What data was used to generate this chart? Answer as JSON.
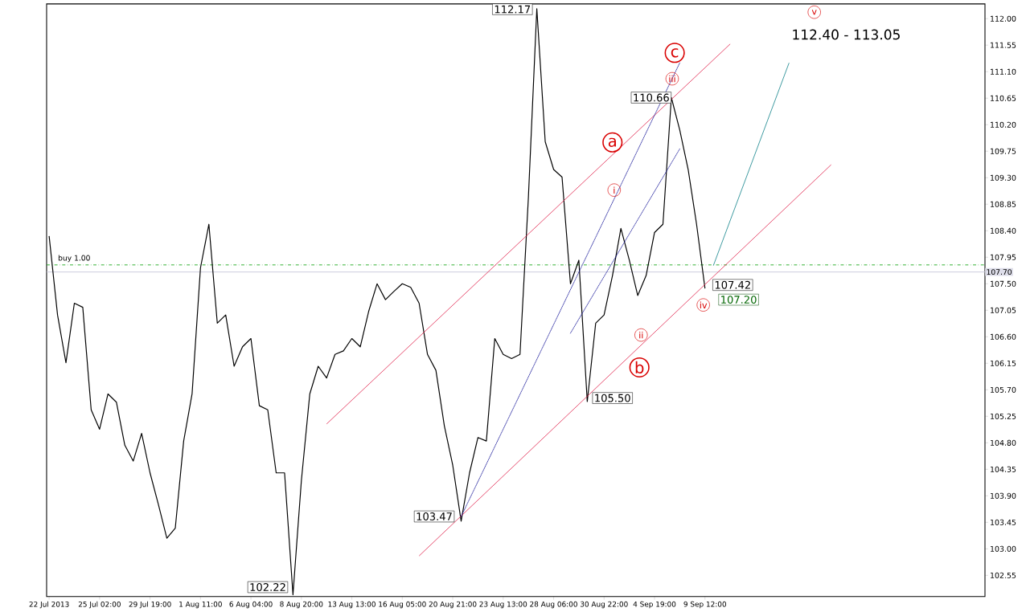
{
  "chart_data": {
    "type": "line",
    "categories": [
      "22 Jul 2013",
      null,
      null,
      null,
      null,
      null,
      "25 Jul 02:00",
      null,
      null,
      null,
      null,
      null,
      "29 Jul 19:00",
      null,
      null,
      null,
      null,
      null,
      "1 Aug 11:00",
      null,
      null,
      null,
      null,
      null,
      "6 Aug 04:00",
      null,
      null,
      null,
      null,
      null,
      "8 Aug 20:00",
      null,
      null,
      null,
      null,
      null,
      "13 Aug 13:00",
      null,
      null,
      null,
      null,
      null,
      "16 Aug 05:00",
      null,
      null,
      null,
      null,
      null,
      "20 Aug 21:00",
      null,
      null,
      null,
      null,
      null,
      "23 Aug 13:00",
      null,
      null,
      null,
      null,
      null,
      "28 Aug 06:00",
      null,
      null,
      null,
      null,
      null,
      "30 Aug 22:00",
      null,
      null,
      null,
      null,
      null,
      "4 Sep 19:00",
      null,
      null,
      null,
      null,
      null,
      "9 Sep 12:00",
      null,
      null,
      null,
      null,
      null,
      null,
      null,
      null,
      null,
      null,
      null,
      null,
      null,
      null,
      null,
      null,
      null,
      null,
      null,
      null,
      null,
      null,
      null,
      null,
      null,
      null,
      null,
      null,
      null,
      null,
      null,
      null,
      null
    ],
    "series": [
      {
        "color": "#000000",
        "line_style": "solid",
        "values": [
          108.31,
          106.97,
          106.16,
          107.17,
          107.1,
          105.36,
          105.03,
          105.63,
          105.49,
          104.76,
          104.49,
          104.96,
          104.29,
          103.75,
          103.18,
          103.35,
          104.83,
          105.63,
          107.77,
          108.51,
          106.83,
          106.97,
          106.1,
          106.43,
          106.57,
          105.43,
          105.36,
          104.29,
          104.29,
          102.22,
          104.16,
          105.63,
          106.1,
          105.9,
          106.3,
          106.36,
          106.57,
          106.43,
          107.03,
          107.5,
          107.23,
          107.37,
          107.5,
          107.44,
          107.17,
          106.3,
          106.03,
          105.09,
          104.42,
          103.47,
          104.29,
          104.89,
          104.83,
          106.57,
          106.3,
          106.23,
          106.3,
          108.97,
          112.17,
          109.91,
          109.44,
          109.31,
          107.5,
          107.9,
          105.5,
          106.83,
          106.97,
          107.64,
          108.44,
          107.9,
          107.3,
          107.64,
          108.37,
          108.51,
          110.66,
          110.11,
          109.44,
          108.51,
          107.42,
          null,
          null,
          null,
          null,
          null,
          null,
          null,
          null,
          null,
          null,
          null,
          null,
          null,
          null,
          null,
          null,
          null,
          null,
          null,
          null,
          null,
          null,
          null,
          null,
          null,
          null,
          null,
          null,
          null,
          null,
          null,
          null,
          null
        ]
      },
      {
        "color": "#e0204a",
        "line_style": "solid",
        "values": [
          null,
          null,
          null,
          null,
          null,
          null,
          null,
          null,
          null,
          null,
          null,
          null,
          null,
          null,
          null,
          null,
          null,
          null,
          null,
          null,
          null,
          null,
          null,
          null,
          null,
          null,
          null,
          null,
          null,
          null,
          null,
          null,
          null,
          105.12,
          null,
          null,
          null,
          null,
          null,
          null,
          null,
          null,
          null,
          null,
          null,
          null,
          null,
          null,
          null,
          null,
          null,
          null,
          null,
          null,
          null,
          null,
          null,
          null,
          null,
          null,
          null,
          null,
          null,
          null,
          null,
          null,
          null,
          null,
          null,
          null,
          null,
          null,
          null,
          null,
          null,
          null,
          null,
          null,
          null,
          null,
          null,
          111.57,
          null,
          null,
          null,
          null,
          null,
          null,
          null,
          null,
          null,
          null,
          null,
          null,
          null,
          null,
          null,
          null,
          null,
          null,
          null,
          null,
          null,
          null,
          null,
          null,
          null,
          null,
          null,
          null,
          null,
          null
        ]
      },
      {
        "color": "#e0204a",
        "line_style": "solid",
        "values": [
          null,
          null,
          null,
          null,
          null,
          null,
          null,
          null,
          null,
          null,
          null,
          null,
          null,
          null,
          null,
          null,
          null,
          null,
          null,
          null,
          null,
          null,
          null,
          null,
          null,
          null,
          null,
          null,
          null,
          null,
          null,
          null,
          null,
          null,
          null,
          null,
          null,
          null,
          null,
          null,
          null,
          null,
          null,
          null,
          102.88,
          null,
          null,
          null,
          null,
          null,
          null,
          null,
          null,
          null,
          null,
          null,
          null,
          null,
          null,
          null,
          null,
          null,
          null,
          null,
          null,
          null,
          null,
          null,
          null,
          null,
          null,
          null,
          null,
          null,
          null,
          null,
          null,
          null,
          null,
          null,
          null,
          null,
          null,
          null,
          null,
          null,
          null,
          null,
          null,
          null,
          null,
          null,
          null,
          109.52,
          null,
          null,
          null,
          null,
          null,
          null,
          null,
          null,
          null,
          null,
          null,
          null,
          null,
          null,
          null,
          null,
          null,
          null
        ]
      },
      {
        "color": "#1a1a9a",
        "line_style": "dotted",
        "values": [
          null,
          null,
          null,
          null,
          null,
          null,
          null,
          null,
          null,
          null,
          null,
          null,
          null,
          null,
          null,
          null,
          null,
          null,
          null,
          null,
          null,
          null,
          null,
          null,
          null,
          null,
          null,
          null,
          null,
          null,
          null,
          null,
          null,
          null,
          null,
          null,
          null,
          null,
          null,
          null,
          null,
          null,
          null,
          null,
          null,
          null,
          null,
          null,
          null,
          103.55,
          null,
          null,
          null,
          null,
          null,
          null,
          null,
          null,
          null,
          null,
          null,
          null,
          null,
          null,
          null,
          null,
          null,
          null,
          null,
          null,
          null,
          null,
          null,
          null,
          null,
          111.25,
          null,
          null,
          null,
          null,
          null,
          null,
          null,
          null,
          null,
          null,
          null,
          null,
          null,
          null,
          null,
          null,
          null,
          null,
          null,
          null,
          null,
          null,
          null,
          null,
          null,
          null,
          null,
          null,
          null,
          null,
          null,
          null,
          null,
          null,
          null,
          null
        ]
      },
      {
        "color": "#1a1a9a",
        "line_style": "dotted",
        "values": [
          null,
          null,
          null,
          null,
          null,
          null,
          null,
          null,
          null,
          null,
          null,
          null,
          null,
          null,
          null,
          null,
          null,
          null,
          null,
          null,
          null,
          null,
          null,
          null,
          null,
          null,
          null,
          null,
          null,
          null,
          null,
          null,
          null,
          null,
          null,
          null,
          null,
          null,
          null,
          null,
          null,
          null,
          null,
          null,
          null,
          null,
          null,
          null,
          null,
          null,
          null,
          null,
          null,
          null,
          null,
          null,
          null,
          null,
          null,
          null,
          null,
          null,
          106.66,
          null,
          null,
          null,
          null,
          null,
          null,
          null,
          null,
          null,
          null,
          null,
          null,
          109.79,
          null,
          null,
          null,
          null,
          null,
          null,
          null,
          null,
          null,
          null,
          null,
          null,
          null,
          null,
          null,
          null,
          null,
          null,
          null,
          null,
          null,
          null,
          null,
          null,
          null,
          null,
          null,
          null,
          null,
          null,
          null,
          null,
          null,
          null,
          null,
          null
        ]
      },
      {
        "color": "#0a7f86",
        "line_style": "solid",
        "values": [
          null,
          null,
          null,
          null,
          null,
          null,
          null,
          null,
          null,
          null,
          null,
          null,
          null,
          null,
          null,
          null,
          null,
          null,
          null,
          null,
          null,
          null,
          null,
          null,
          null,
          null,
          null,
          null,
          null,
          null,
          null,
          null,
          null,
          null,
          null,
          null,
          null,
          null,
          null,
          null,
          null,
          null,
          null,
          null,
          null,
          null,
          null,
          null,
          null,
          null,
          null,
          null,
          null,
          null,
          null,
          null,
          null,
          null,
          null,
          null,
          null,
          null,
          null,
          null,
          null,
          null,
          null,
          null,
          null,
          null,
          null,
          null,
          null,
          null,
          null,
          null,
          null,
          null,
          null,
          107.81,
          null,
          null,
          null,
          null,
          null,
          null,
          null,
          null,
          111.25,
          null,
          null,
          null,
          null,
          null,
          null,
          null,
          null,
          null,
          null,
          null,
          null,
          null,
          null,
          null,
          null,
          null,
          null,
          null,
          null,
          null,
          null,
          null
        ]
      }
    ],
    "ylim": [
      102.19,
      112.25
    ],
    "yticks": [
      {
        "value": 112.0,
        "label": "112.00"
      },
      {
        "value": 111.55,
        "label": "111.55"
      },
      {
        "value": 111.1,
        "label": "111.10"
      },
      {
        "value": 110.65,
        "label": "110.65"
      },
      {
        "value": 110.2,
        "label": "110.20"
      },
      {
        "value": 109.75,
        "label": "109.75"
      },
      {
        "value": 109.3,
        "label": "109.30"
      },
      {
        "value": 108.85,
        "label": "108.85"
      },
      {
        "value": 108.4,
        "label": "108.40"
      },
      {
        "value": 107.95,
        "label": "107.95"
      },
      {
        "value": 107.5,
        "label": "107.50"
      },
      {
        "value": 107.05,
        "label": "107.05"
      },
      {
        "value": 106.6,
        "label": "106.60"
      },
      {
        "value": 106.15,
        "label": "106.15"
      },
      {
        "value": 105.7,
        "label": "105.70"
      },
      {
        "value": 105.25,
        "label": "105.25"
      },
      {
        "value": 104.8,
        "label": "104.80"
      },
      {
        "value": 104.35,
        "label": "104.35"
      },
      {
        "value": 103.9,
        "label": "103.90"
      },
      {
        "value": 103.45,
        "label": "103.45"
      },
      {
        "value": 103.0,
        "label": "103.00"
      },
      {
        "value": 102.55,
        "label": "102.55"
      }
    ],
    "ref_lines": [
      {
        "axis": "y",
        "value": 107.82,
        "label": "buy 1.00",
        "color": "#22aa22",
        "line_style": "dashdot"
      },
      {
        "axis": "y",
        "value": 107.7,
        "label": "107.70",
        "color": "#c8c8dc",
        "line_style": "solid"
      }
    ],
    "annotations": [
      "112.17",
      "110.66",
      "107.42",
      "107.20",
      "105.50",
      "103.47",
      "102.22",
      "a",
      "b",
      "c",
      "i",
      "ii",
      "iii",
      "iv",
      "v",
      "112.40 - 113.05"
    ],
    "grid": false
  }
}
